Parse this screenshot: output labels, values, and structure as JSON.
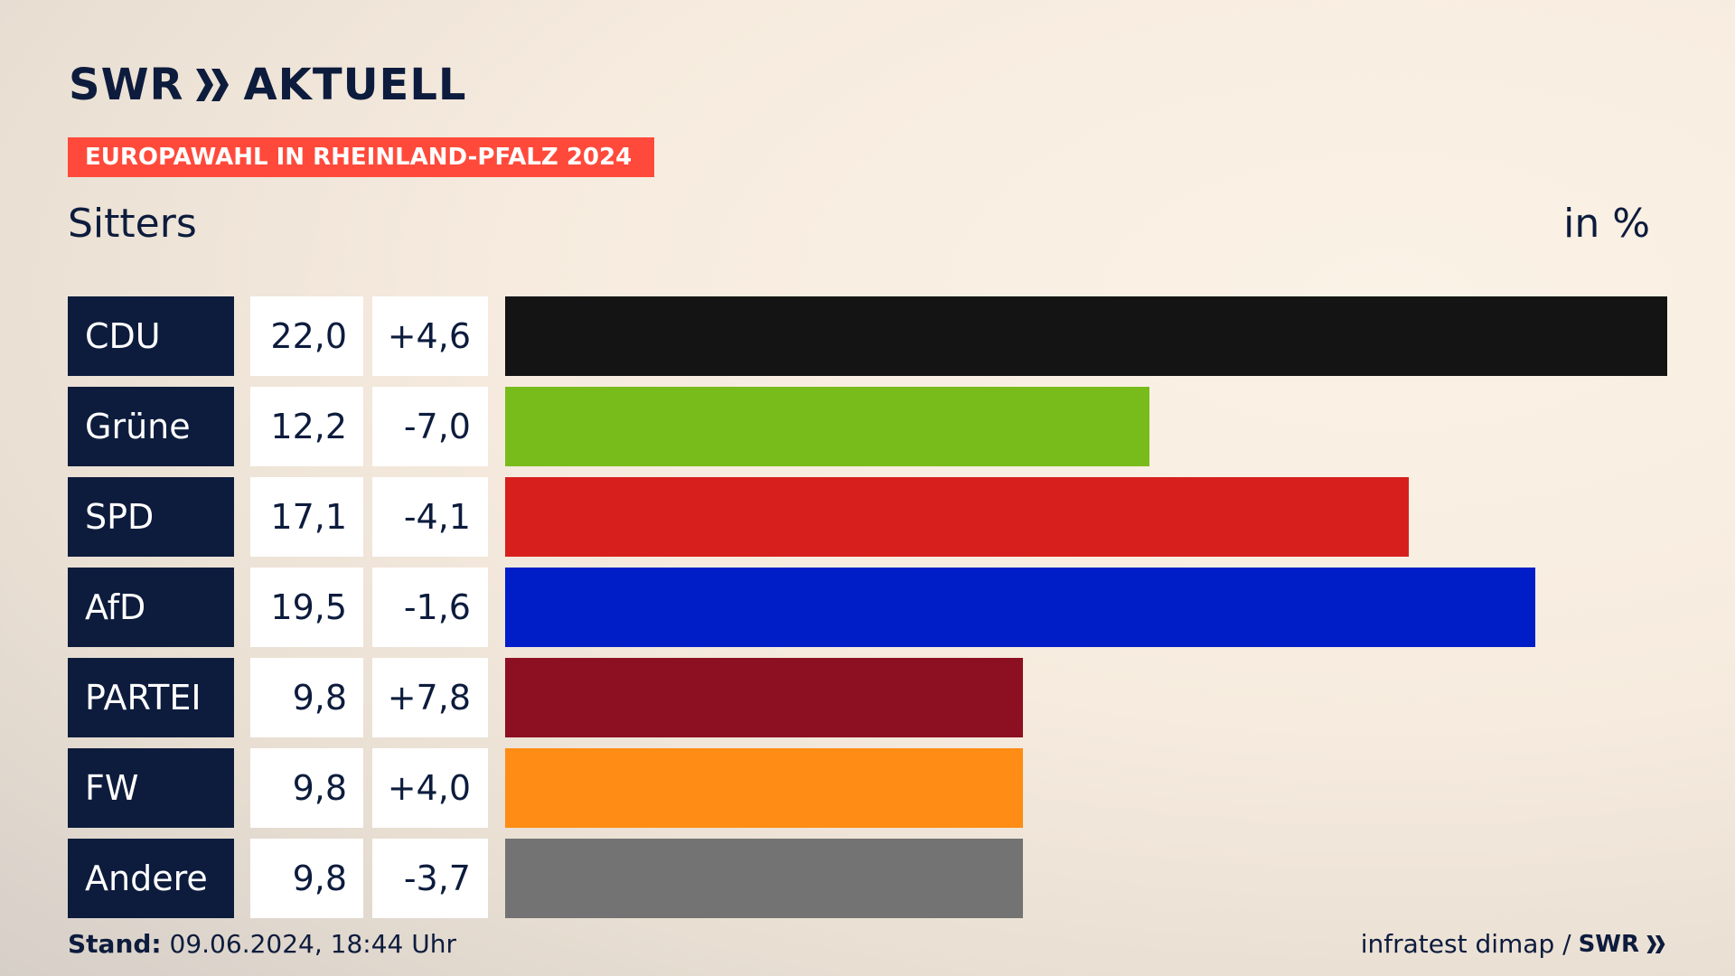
{
  "brand": {
    "logo_left": "SWR",
    "logo_right": "AKTUELL"
  },
  "tag": "EUROPAWAHL IN RHEINLAND-PFALZ 2024",
  "chart_data": {
    "type": "bar",
    "orientation": "horizontal",
    "title": "Sitters",
    "unit_label": "in %",
    "categories": [
      "CDU",
      "Grüne",
      "SPD",
      "AfD",
      "PARTEI",
      "FW",
      "Andere"
    ],
    "values": [
      22.0,
      12.2,
      17.1,
      19.5,
      9.8,
      9.8,
      9.8
    ],
    "value_labels": [
      "22,0",
      "12,2",
      "17,1",
      "19,5",
      "9,8",
      "9,8",
      "9,8"
    ],
    "diff_labels": [
      "+4,6",
      "-7,0",
      "-4,1",
      "-1,6",
      "+7,8",
      "+4,0",
      "-3,7"
    ],
    "colors": [
      "#141414",
      "#78bc1b",
      "#d71f1d",
      "#001ec8",
      "#8c0f22",
      "#ff8c14",
      "#737373"
    ],
    "xlim": [
      0,
      22.0
    ]
  },
  "footer": {
    "stand_label": "Stand:",
    "stand_value": "09.06.2024, 18:44 Uhr",
    "source": "infratest dimap /",
    "source_brand": "SWR"
  }
}
